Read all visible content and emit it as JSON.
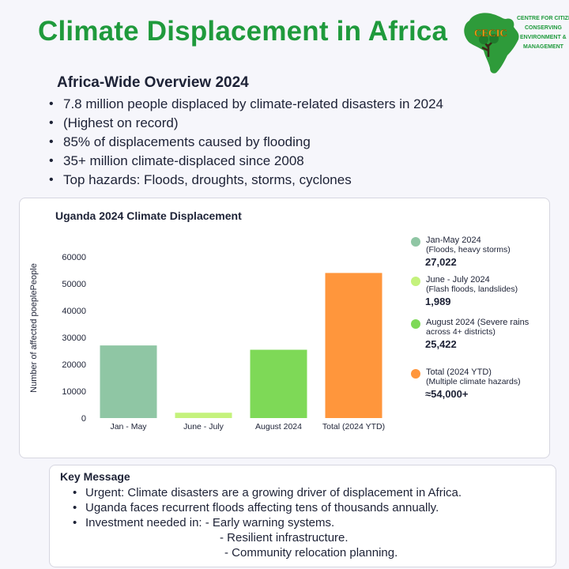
{
  "header": {
    "title": "Climate Displacement in Africa",
    "logo": {
      "name": "CECIC",
      "lines": [
        "CENTRE FOR CITIZENS",
        "CONSERVING",
        "ENVIRONMENT &",
        "MANAGEMENT"
      ]
    }
  },
  "overview": {
    "heading": "Africa-Wide Overview 2024",
    "bullets": [
      "7.8 million people displaced by climate-related disasters in 2024",
      "(Highest on record)",
      "85% of displacements caused by flooding",
      "35+ million climate-displaced since 2008",
      "Top hazards: Floods, droughts, storms, cyclones"
    ]
  },
  "chart_data": {
    "type": "bar",
    "title": "Uganda  2024 Climate Displacement",
    "categories": [
      "Jan - May",
      "June - July",
      "August 2024",
      "Total (2024 YTD)"
    ],
    "values": [
      27022,
      1989,
      25422,
      54000
    ],
    "colors": [
      "#8fc6a4",
      "#c4f27c",
      "#7ed957",
      "#ff963c"
    ],
    "xlabel": "",
    "ylabel": "Number of affected poeplePeople",
    "ylim": [
      0,
      60000
    ],
    "yticks": [
      "0",
      "10000",
      "20000",
      "30000",
      "40000",
      "50000",
      "60000"
    ],
    "grid": false,
    "legend": [
      {
        "label_lines": [
          "Jan-May 2024",
          "(Floods, heavy storms)"
        ],
        "value": "27,022",
        "color": "#8fc6a4"
      },
      {
        "label_lines": [
          "June - July 2024",
          "(Flash floods, landslides)"
        ],
        "value": "1,989",
        "color": "#c4f27c"
      },
      {
        "label_lines": [
          "August 2024 (Severe rains",
          "across 4+ districts)"
        ],
        "value": "25,422",
        "color": "#7ed957"
      },
      {
        "label_lines": [
          "Total (2024 YTD)",
          "(Multiple climate hazards)"
        ],
        "value": "≈54,000+",
        "color": "#ff963c"
      }
    ]
  },
  "key_message": {
    "heading": "Key Message",
    "bullets": [
      "Urgent: Climate disasters are a growing driver of displacement in Africa.",
      "Uganda faces recurrent floods affecting tens of thousands annually.",
      "Investment needed in: - Early warning systems."
    ],
    "sub_items": [
      "- Resilient infrastructure.",
      "- Community relocation planning."
    ]
  }
}
